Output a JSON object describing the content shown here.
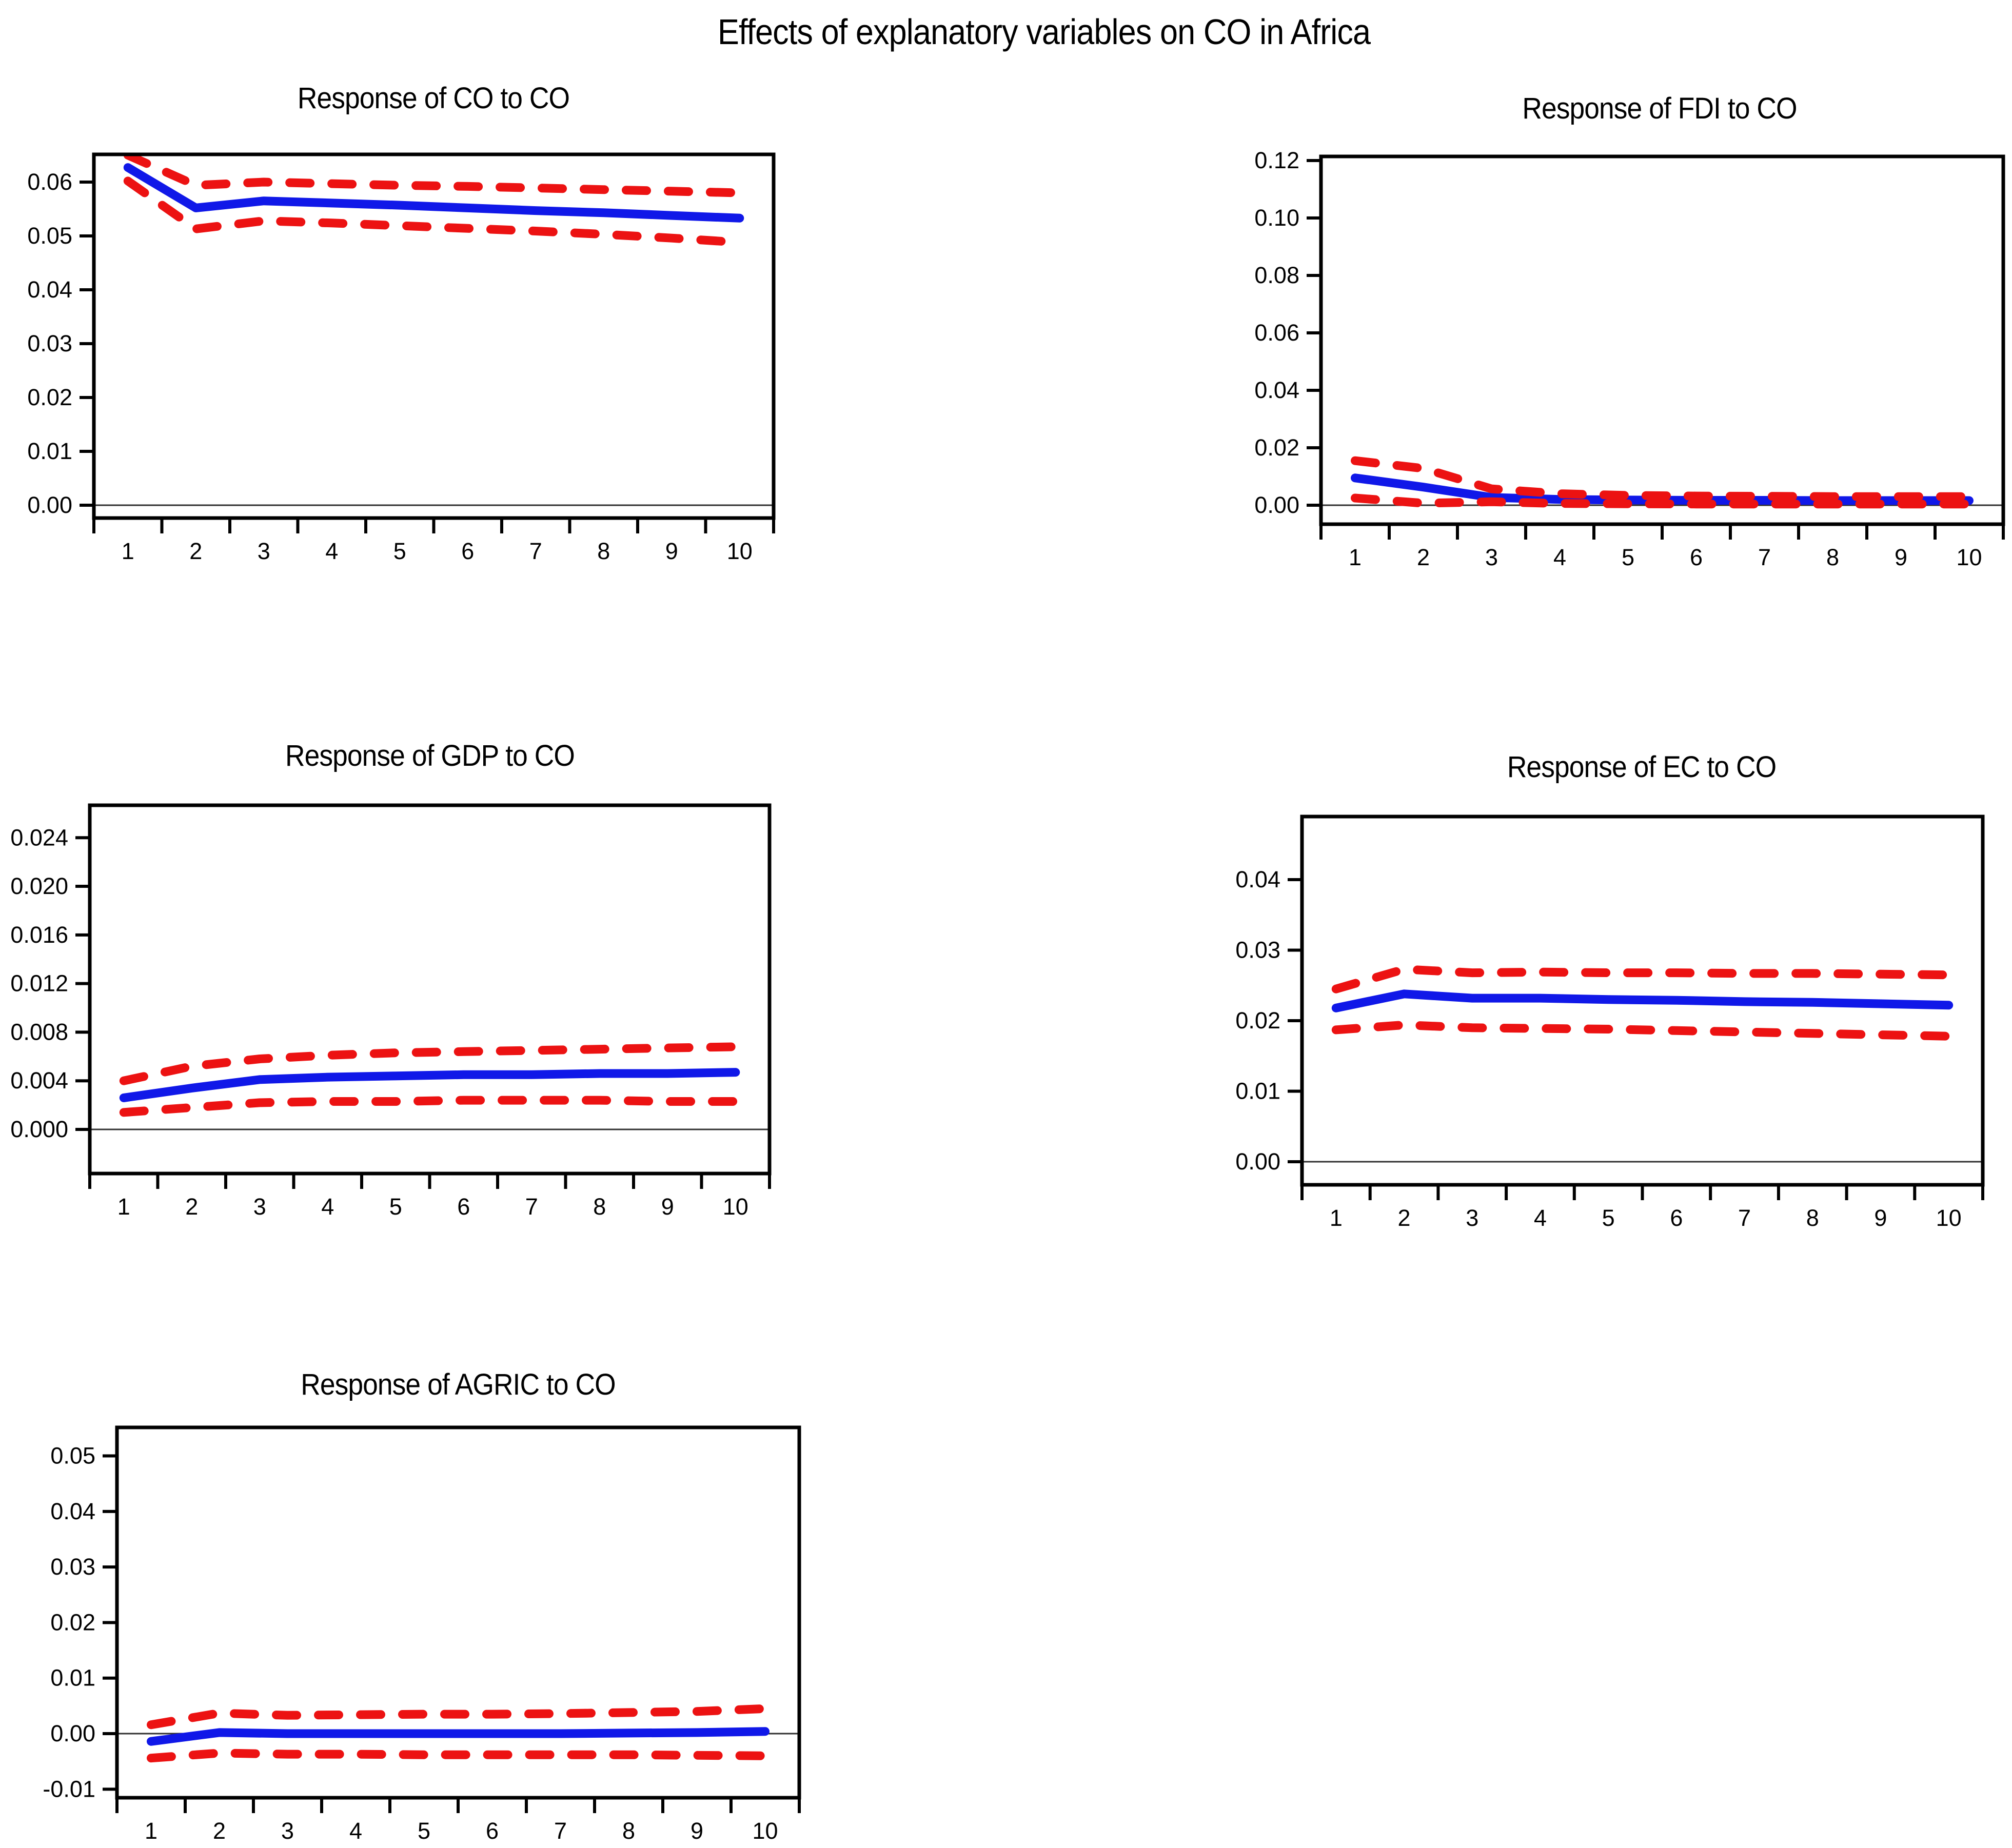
{
  "figure": {
    "title": "Effects of explanatory variables on CO in Africa"
  },
  "colors": {
    "response_line": "#1018E8",
    "confidence_band": "#EC1212",
    "axis": "#000000",
    "zero_line": "#303030",
    "background": "#FFFFFF",
    "text": "#000000"
  },
  "chart_data": [
    {
      "id": "co-to-co",
      "type": "line",
      "title": "Response of CO to CO",
      "xlabel": "",
      "ylabel": "",
      "categories": [
        1,
        2,
        3,
        4,
        5,
        6,
        7,
        8,
        9,
        10
      ],
      "xtick_labels": [
        "1",
        "2",
        "3",
        "4",
        "5",
        "6",
        "7",
        "8",
        "9",
        "10"
      ],
      "yticks": [
        0.06,
        0.05,
        0.04,
        0.03,
        0.02,
        0.01,
        0.0
      ],
      "ytick_labels": [
        "0.06",
        "0.05",
        "0.04",
        "0.03",
        "0.02",
        "0.01",
        "0.00"
      ],
      "ylim": [
        -0.00238,
        0.06514
      ],
      "grid": false,
      "zero_line": true,
      "legend": "none",
      "series": [
        {
          "name": "response",
          "style": "solid",
          "color_key": "response_line",
          "values": [
            0.0627,
            0.0552,
            0.0565,
            0.0561,
            0.0557,
            0.0552,
            0.0547,
            0.0543,
            0.0538,
            0.0533
          ]
        },
        {
          "name": "upper-band",
          "style": "dashed",
          "color_key": "confidence_band",
          "values": [
            0.065,
            0.0594,
            0.06,
            0.0597,
            0.0594,
            0.0592,
            0.0589,
            0.0586,
            0.0583,
            0.058
          ]
        },
        {
          "name": "lower-band",
          "style": "dashed",
          "color_key": "confidence_band",
          "values": [
            0.0602,
            0.0513,
            0.0528,
            0.0524,
            0.0519,
            0.0514,
            0.0509,
            0.0503,
            0.0496,
            0.0488
          ]
        }
      ]
    },
    {
      "id": "fdi-to-co",
      "type": "line",
      "title": "Response of FDI to CO",
      "xlabel": "",
      "ylabel": "",
      "categories": [
        1,
        2,
        3,
        4,
        5,
        6,
        7,
        8,
        9,
        10
      ],
      "xtick_labels": [
        "1",
        "2",
        "3",
        "4",
        "5",
        "6",
        "7",
        "8",
        "9",
        "10"
      ],
      "yticks": [
        0.12,
        0.1,
        0.08,
        0.06,
        0.04,
        0.02,
        0.0
      ],
      "ytick_labels": [
        "0.12",
        "0.10",
        "0.08",
        "0.06",
        "0.04",
        "0.02",
        "0.00"
      ],
      "ylim": [
        -0.00661,
        0.12143
      ],
      "grid": false,
      "zero_line": true,
      "legend": "none",
      "series": [
        {
          "name": "response",
          "style": "solid",
          "color_key": "response_line",
          "values": [
            0.0095,
            0.0063,
            0.0027,
            0.002,
            0.0018,
            0.0017,
            0.0017,
            0.0016,
            0.0016,
            0.0016
          ]
        },
        {
          "name": "upper-band",
          "style": "dashed",
          "color_key": "confidence_band",
          "values": [
            0.0155,
            0.0128,
            0.0057,
            0.004,
            0.0034,
            0.0032,
            0.0031,
            0.003,
            0.003,
            0.003
          ]
        },
        {
          "name": "lower-band",
          "style": "dashed",
          "color_key": "confidence_band",
          "values": [
            0.0025,
            0.0007,
            0.0012,
            0.0006,
            0.0005,
            0.0004,
            0.0004,
            0.0004,
            0.0004,
            0.0004
          ]
        }
      ]
    },
    {
      "id": "gdp-to-co",
      "type": "line",
      "title": "Response of GDP to CO",
      "xlabel": "",
      "ylabel": "",
      "categories": [
        1,
        2,
        3,
        4,
        5,
        6,
        7,
        8,
        9,
        10
      ],
      "xtick_labels": [
        "1",
        "2",
        "3",
        "4",
        "5",
        "6",
        "7",
        "8",
        "9",
        "10"
      ],
      "yticks": [
        0.024,
        0.02,
        0.016,
        0.012,
        0.008,
        0.004,
        0.0
      ],
      "ytick_labels": [
        "0.024",
        "0.020",
        "0.016",
        "0.012",
        "0.008",
        "0.004",
        "0.000"
      ],
      "ylim": [
        -0.00363,
        0.02667
      ],
      "grid": false,
      "zero_line": true,
      "legend": "none",
      "series": [
        {
          "name": "response",
          "style": "solid",
          "color_key": "response_line",
          "values": [
            0.0026,
            0.0034,
            0.0041,
            0.0043,
            0.0044,
            0.0045,
            0.0045,
            0.0046,
            0.0046,
            0.0047
          ]
        },
        {
          "name": "upper-band",
          "style": "dashed",
          "color_key": "confidence_band",
          "values": [
            0.004,
            0.0052,
            0.0058,
            0.0061,
            0.0063,
            0.0064,
            0.0065,
            0.0066,
            0.0067,
            0.0068
          ]
        },
        {
          "name": "lower-band",
          "style": "dashed",
          "color_key": "confidence_band",
          "values": [
            0.0014,
            0.0018,
            0.0022,
            0.0023,
            0.0023,
            0.0024,
            0.0024,
            0.0024,
            0.0023,
            0.0023
          ]
        }
      ]
    },
    {
      "id": "ec-to-co",
      "type": "line",
      "title": "Response of EC to CO",
      "xlabel": "",
      "ylabel": "",
      "categories": [
        1,
        2,
        3,
        4,
        5,
        6,
        7,
        8,
        9,
        10
      ],
      "xtick_labels": [
        "1",
        "2",
        "3",
        "4",
        "5",
        "6",
        "7",
        "8",
        "9",
        "10"
      ],
      "yticks": [
        0.04,
        0.03,
        0.02,
        0.01,
        0.0
      ],
      "ytick_labels": [
        "0.04",
        "0.03",
        "0.02",
        "0.01",
        "0.00"
      ],
      "ylim": [
        -0.00327,
        0.04895
      ],
      "grid": false,
      "zero_line": true,
      "legend": "none",
      "series": [
        {
          "name": "response",
          "style": "solid",
          "color_key": "response_line",
          "values": [
            0.0218,
            0.0238,
            0.0232,
            0.0232,
            0.023,
            0.0229,
            0.0227,
            0.0226,
            0.0224,
            0.0222
          ]
        },
        {
          "name": "upper-band",
          "style": "dashed",
          "color_key": "confidence_band",
          "values": [
            0.0245,
            0.0273,
            0.0268,
            0.0269,
            0.0268,
            0.0268,
            0.0267,
            0.0267,
            0.0266,
            0.0265
          ]
        },
        {
          "name": "lower-band",
          "style": "dashed",
          "color_key": "confidence_band",
          "values": [
            0.0187,
            0.0194,
            0.019,
            0.0189,
            0.0188,
            0.0186,
            0.0184,
            0.0182,
            0.018,
            0.0178
          ]
        }
      ]
    },
    {
      "id": "agric-to-co",
      "type": "line",
      "title": "Response of AGRIC to CO",
      "xlabel": "",
      "ylabel": "",
      "categories": [
        1,
        2,
        3,
        4,
        5,
        6,
        7,
        8,
        9,
        10
      ],
      "xtick_labels": [
        "1",
        "2",
        "3",
        "4",
        "5",
        "6",
        "7",
        "8",
        "9",
        "10"
      ],
      "yticks": [
        0.05,
        0.04,
        0.03,
        0.02,
        0.01,
        0.0,
        -0.01
      ],
      "ytick_labels": [
        "0.05",
        "0.04",
        "0.03",
        "0.02",
        "0.01",
        "0.00",
        "-0.01"
      ],
      "ylim": [
        -0.01154,
        0.05513
      ],
      "grid": false,
      "zero_line": true,
      "legend": "none",
      "series": [
        {
          "name": "response",
          "style": "solid",
          "color_key": "response_line",
          "values": [
            -0.0014,
            0.0002,
            0.0,
            0.0,
            0.0,
            0.0,
            0.0,
            0.0001,
            0.0002,
            0.0004
          ]
        },
        {
          "name": "upper-band",
          "style": "dashed",
          "color_key": "confidence_band",
          "values": [
            0.0016,
            0.0037,
            0.0033,
            0.0034,
            0.0035,
            0.0035,
            0.0036,
            0.0038,
            0.004,
            0.0045
          ]
        },
        {
          "name": "lower-band",
          "style": "dashed",
          "color_key": "confidence_band",
          "values": [
            -0.0044,
            -0.0035,
            -0.0037,
            -0.0037,
            -0.0038,
            -0.0038,
            -0.0038,
            -0.0038,
            -0.0039,
            -0.004
          ]
        }
      ]
    }
  ]
}
